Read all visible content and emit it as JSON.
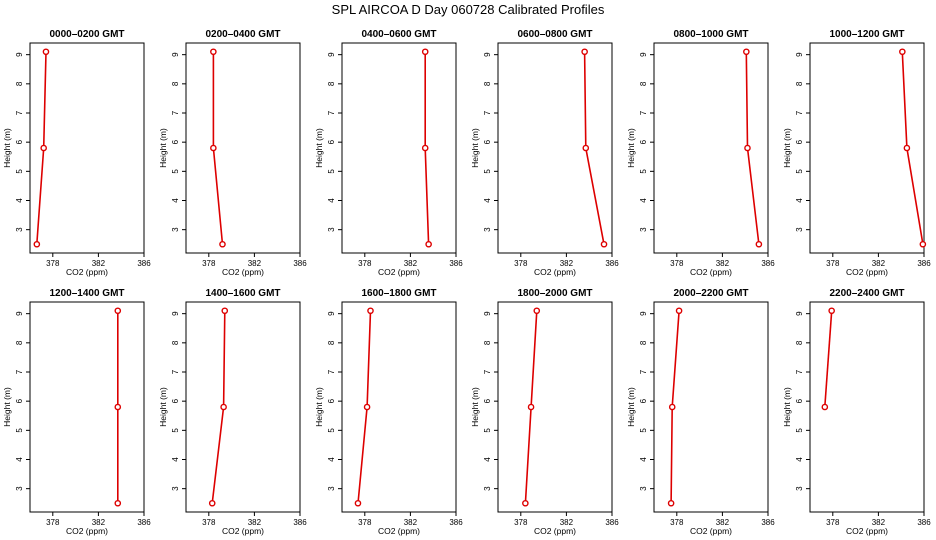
{
  "title": "SPL AIRCOA D  Day 060728  Calibrated Profiles",
  "chart_data": [
    {
      "type": "line",
      "title": "0000–0200 GMT",
      "xlabel": "CO2 (ppm)",
      "ylabel": "Height (m)",
      "xlim": [
        376,
        386
      ],
      "ylim": [
        2.2,
        9.4
      ],
      "xticks": [
        "378",
        "382",
        "386"
      ],
      "yticks": [
        "3",
        "4",
        "5",
        "6",
        "7",
        "8",
        "9"
      ],
      "color": "#dd0000",
      "x": [
        376.6,
        377.2,
        377.4
      ],
      "y": [
        2.5,
        5.8,
        9.1
      ]
    },
    {
      "type": "line",
      "title": "0200–0400 GMT",
      "xlabel": "CO2 (ppm)",
      "ylabel": "Height (m)",
      "xlim": [
        376,
        386
      ],
      "ylim": [
        2.2,
        9.4
      ],
      "xticks": [
        "378",
        "382",
        "386"
      ],
      "yticks": [
        "3",
        "4",
        "5",
        "6",
        "7",
        "8",
        "9"
      ],
      "color": "#dd0000",
      "x": [
        379.2,
        378.4,
        378.4
      ],
      "y": [
        2.5,
        5.8,
        9.1
      ]
    },
    {
      "type": "line",
      "title": "0400–0600 GMT",
      "xlabel": "CO2 (ppm)",
      "ylabel": "Height (m)",
      "xlim": [
        376,
        386
      ],
      "ylim": [
        2.2,
        9.4
      ],
      "xticks": [
        "378",
        "382",
        "386"
      ],
      "yticks": [
        "3",
        "4",
        "5",
        "6",
        "7",
        "8",
        "9"
      ],
      "color": "#dd0000",
      "x": [
        383.6,
        383.3,
        383.3
      ],
      "y": [
        2.5,
        5.8,
        9.1
      ]
    },
    {
      "type": "line",
      "title": "0600–0800 GMT",
      "xlabel": "CO2 (ppm)",
      "ylabel": "Height (m)",
      "xlim": [
        376,
        386
      ],
      "ylim": [
        2.2,
        9.4
      ],
      "xticks": [
        "378",
        "382",
        "386"
      ],
      "yticks": [
        "3",
        "4",
        "5",
        "6",
        "7",
        "8",
        "9"
      ],
      "color": "#dd0000",
      "x": [
        385.3,
        383.7,
        383.6
      ],
      "y": [
        2.5,
        5.8,
        9.1
      ]
    },
    {
      "type": "line",
      "title": "0800–1000 GMT",
      "xlabel": "CO2 (ppm)",
      "ylabel": "Height (m)",
      "xlim": [
        376,
        386
      ],
      "ylim": [
        2.2,
        9.4
      ],
      "xticks": [
        "378",
        "382",
        "386"
      ],
      "yticks": [
        "3",
        "4",
        "5",
        "6",
        "7",
        "8",
        "9"
      ],
      "color": "#dd0000",
      "x": [
        385.2,
        384.2,
        384.1
      ],
      "y": [
        2.5,
        5.8,
        9.1
      ]
    },
    {
      "type": "line",
      "title": "1000–1200 GMT",
      "xlabel": "CO2 (ppm)",
      "ylabel": "Height (m)",
      "xlim": [
        376,
        386
      ],
      "ylim": [
        2.2,
        9.4
      ],
      "xticks": [
        "378",
        "382",
        "386"
      ],
      "yticks": [
        "3",
        "4",
        "5",
        "6",
        "7",
        "8",
        "9"
      ],
      "color": "#dd0000",
      "x": [
        385.9,
        384.5,
        384.1
      ],
      "y": [
        2.5,
        5.8,
        9.1
      ]
    },
    {
      "type": "line",
      "title": "1200–1400 GMT",
      "xlabel": "CO2 (ppm)",
      "ylabel": "Height (m)",
      "xlim": [
        376,
        386
      ],
      "ylim": [
        2.2,
        9.4
      ],
      "xticks": [
        "378",
        "382",
        "386"
      ],
      "yticks": [
        "3",
        "4",
        "5",
        "6",
        "7",
        "8",
        "9"
      ],
      "color": "#dd0000",
      "x": [
        383.7,
        383.7,
        383.7
      ],
      "y": [
        2.5,
        5.8,
        9.1
      ]
    },
    {
      "type": "line",
      "title": "1400–1600 GMT",
      "xlabel": "CO2 (ppm)",
      "ylabel": "Height (m)",
      "xlim": [
        376,
        386
      ],
      "ylim": [
        2.2,
        9.4
      ],
      "xticks": [
        "378",
        "382",
        "386"
      ],
      "yticks": [
        "3",
        "4",
        "5",
        "6",
        "7",
        "8",
        "9"
      ],
      "color": "#dd0000",
      "x": [
        378.3,
        379.3,
        379.4
      ],
      "y": [
        2.5,
        5.8,
        9.1
      ]
    },
    {
      "type": "line",
      "title": "1600–1800 GMT",
      "xlabel": "CO2 (ppm)",
      "ylabel": "Height (m)",
      "xlim": [
        376,
        386
      ],
      "ylim": [
        2.2,
        9.4
      ],
      "xticks": [
        "378",
        "382",
        "386"
      ],
      "yticks": [
        "3",
        "4",
        "5",
        "6",
        "7",
        "8",
        "9"
      ],
      "color": "#dd0000",
      "x": [
        377.4,
        378.2,
        378.5
      ],
      "y": [
        2.5,
        5.8,
        9.1
      ]
    },
    {
      "type": "line",
      "title": "1800–2000 GMT",
      "xlabel": "CO2 (ppm)",
      "ylabel": "Height (m)",
      "xlim": [
        376,
        386
      ],
      "ylim": [
        2.2,
        9.4
      ],
      "xticks": [
        "378",
        "382",
        "386"
      ],
      "yticks": [
        "3",
        "4",
        "5",
        "6",
        "7",
        "8",
        "9"
      ],
      "color": "#dd0000",
      "x": [
        378.4,
        378.9,
        379.4
      ],
      "y": [
        2.5,
        5.8,
        9.1
      ]
    },
    {
      "type": "line",
      "title": "2000–2200 GMT",
      "xlabel": "CO2 (ppm)",
      "ylabel": "Height (m)",
      "xlim": [
        376,
        386
      ],
      "ylim": [
        2.2,
        9.4
      ],
      "xticks": [
        "378",
        "382",
        "386"
      ],
      "yticks": [
        "3",
        "4",
        "5",
        "6",
        "7",
        "8",
        "9"
      ],
      "color": "#dd0000",
      "x": [
        377.5,
        377.6,
        378.2
      ],
      "y": [
        2.5,
        5.8,
        9.1
      ]
    },
    {
      "type": "line",
      "title": "2200–2400 GMT",
      "xlabel": "CO2 (ppm)",
      "ylabel": "Height (m)",
      "xlim": [
        376,
        386
      ],
      "ylim": [
        2.2,
        9.4
      ],
      "xticks": [
        "378",
        "382",
        "386"
      ],
      "yticks": [
        "3",
        "4",
        "5",
        "6",
        "7",
        "8",
        "9"
      ],
      "color": "#dd0000",
      "x": [
        377.3,
        377.9
      ],
      "y": [
        5.8,
        9.1
      ]
    }
  ]
}
